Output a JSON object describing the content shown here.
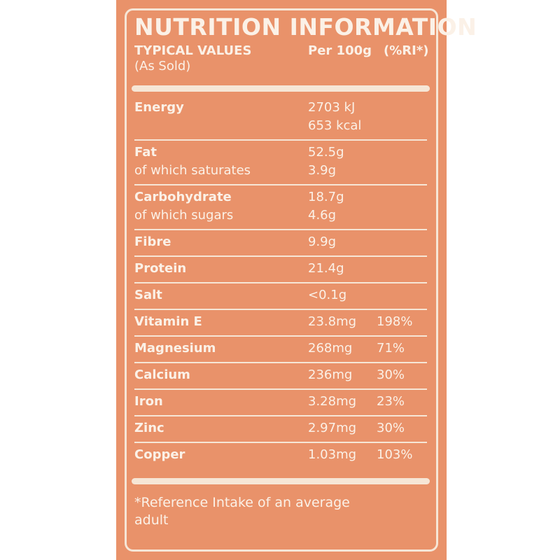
{
  "label": {
    "title": "NUTRITION INFORMATION",
    "typical_values": "TYPICAL VALUES",
    "as_sold": "(As Sold)",
    "per_100g": "Per 100g",
    "ri_header": "(%RI*)",
    "rows": [
      {
        "name": "Energy",
        "values": [
          "2703 kJ",
          "653 kcal"
        ],
        "ri": ""
      },
      {
        "name": "Fat",
        "sub": "of which saturates",
        "values": [
          "52.5g",
          "3.9g"
        ],
        "ri": ""
      },
      {
        "name": "Carbohydrate",
        "sub": "of which sugars",
        "values": [
          "18.7g",
          "4.6g"
        ],
        "ri": ""
      },
      {
        "name": "Fibre",
        "values": [
          "9.9g"
        ],
        "ri": ""
      },
      {
        "name": "Protein",
        "values": [
          "21.4g"
        ],
        "ri": ""
      },
      {
        "name": "Salt",
        "values": [
          "<0.1g"
        ],
        "ri": ""
      },
      {
        "name": "Vitamin E",
        "values": [
          "23.8mg"
        ],
        "ri": "198%"
      },
      {
        "name": "Magnesium",
        "values": [
          "268mg"
        ],
        "ri": "71%"
      },
      {
        "name": "Calcium",
        "values": [
          "236mg"
        ],
        "ri": "30%"
      },
      {
        "name": "Iron",
        "values": [
          "3.28mg"
        ],
        "ri": "23%"
      },
      {
        "name": "Zinc",
        "values": [
          "2.97mg"
        ],
        "ri": "30%"
      },
      {
        "name": "Copper",
        "values": [
          "1.03mg"
        ],
        "ri": "103%"
      }
    ],
    "footnote": "*Reference Intake of an average adult"
  },
  "colors": {
    "background": "#e9926a",
    "foreground": "#fbf1e7",
    "rule": "#f6e6d6"
  }
}
